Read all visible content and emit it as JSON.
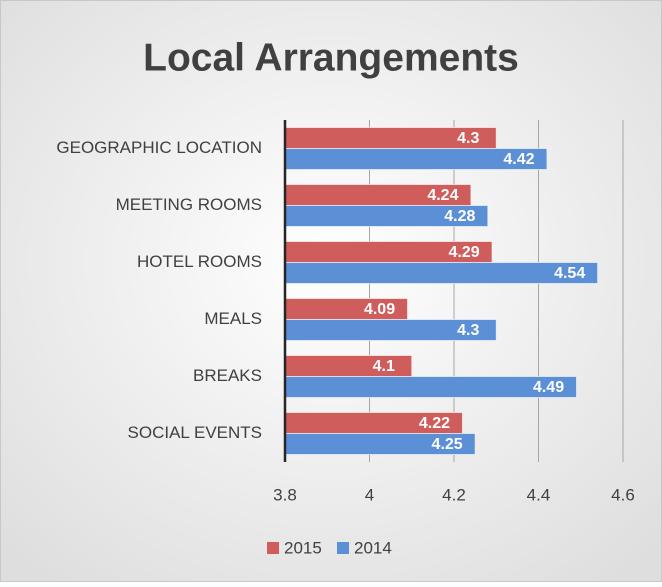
{
  "chart_data": {
    "type": "bar",
    "orientation": "horizontal",
    "title": "Local Arrangements",
    "categories": [
      "GEOGRAPHIC LOCATION",
      "MEETING ROOMS",
      "HOTEL ROOMS",
      "MEALS",
      "BREAKS",
      "SOCIAL EVENTS"
    ],
    "series": [
      {
        "name": "2015",
        "color": "#cf5d5b",
        "values": [
          4.3,
          4.24,
          4.29,
          4.09,
          4.1,
          4.22
        ]
      },
      {
        "name": "2014",
        "color": "#5b8fd6",
        "values": [
          4.42,
          4.28,
          4.54,
          4.3,
          4.49,
          4.25
        ]
      }
    ],
    "xlim": [
      3.8,
      4.6
    ],
    "xticks": [
      3.8,
      4,
      4.2,
      4.4,
      4.6
    ],
    "grid": true,
    "legend": "bottom"
  }
}
